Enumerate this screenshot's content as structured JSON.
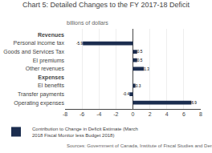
{
  "chart_data": {
    "type": "bar",
    "orientation": "horizontal",
    "title": "Chart 5: Detailed Changes to the FY 2017-18 Deficit",
    "subtitle": "billions of dollars",
    "source": "Sources: Government of Canada, Institute of Fiscal Studies and Democracy.",
    "categories": [
      "Revenues",
      "Personal income tax",
      "Goods and Services Tax",
      "EI premiums",
      "Other revenues",
      "Expenses",
      "EI benefits",
      "Transfer payments",
      "Operating expenses"
    ],
    "series": [
      {
        "name": "Contribution to Change in Deficit Estimate (March 2018 Fiscal Monitor less Budget 2018)",
        "color": "#1b2d4f",
        "values": [
          null,
          -5.9,
          0.5,
          0.5,
          1.3,
          null,
          0.3,
          -0.4,
          6.9
        ]
      }
    ],
    "data_labels": true,
    "xlim": [
      -8,
      8
    ],
    "xticks": [
      -8,
      -6,
      -4,
      -2,
      0,
      2,
      4,
      6,
      8
    ],
    "grid": true,
    "legend": "bottom"
  }
}
